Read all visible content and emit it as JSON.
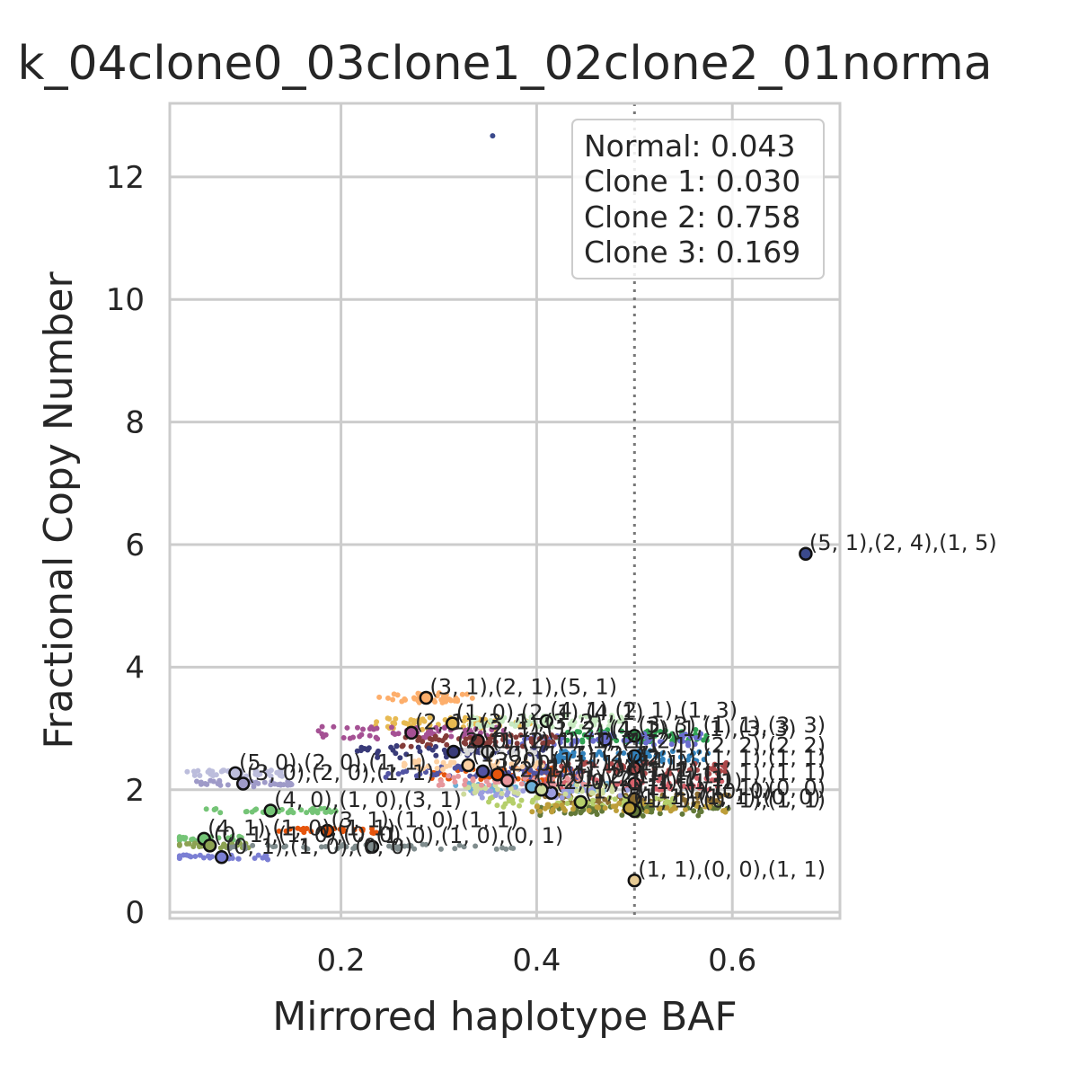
{
  "chart_data": {
    "type": "scatter",
    "title": "k_04clone0_03clone1_02clone2_01norma",
    "xlabel": "Mirrored haplotype BAF",
    "ylabel": "Fractional Copy Number",
    "xlim": [
      0.025,
      0.71
    ],
    "ylim": [
      -0.1,
      13.2
    ],
    "xticks": [
      0.2,
      0.4,
      0.6
    ],
    "xtick_labels": [
      "0.2",
      "0.4",
      "0.6"
    ],
    "yticks": [
      0,
      2,
      4,
      6,
      8,
      10,
      12
    ],
    "ytick_labels": [
      "0",
      "2",
      "4",
      "6",
      "8",
      "10",
      "12"
    ],
    "grid": true,
    "reference_line": {
      "orientation": "vertical",
      "x": 0.5,
      "style": "dotted"
    },
    "legend": {
      "placement": "top-right",
      "entries": [
        "Normal: 0.043",
        "Clone 1: 0.030",
        "Clone 2: 0.758",
        "Clone 3: 0.169"
      ]
    },
    "outliers": [
      {
        "x": 0.355,
        "y": 12.67,
        "color": "#3b4a8c"
      }
    ],
    "clusters": [
      {
        "label": "(5, 1),(2, 4),(1, 5)",
        "x": 0.675,
        "y": 5.85,
        "color": "#3b4a8c",
        "spread": [
          0.0,
          0.0,
          0
        ]
      },
      {
        "label": "(1, 1),(0, 0),(1, 1)",
        "x": 0.5,
        "y": 0.52,
        "color": "#e7cb94",
        "spread": [
          0.0,
          0.0,
          0
        ]
      },
      {
        "label": "(3, 1),(2, 1),(5, 1)",
        "x": 0.287,
        "y": 3.5,
        "color": "#fdae6b",
        "spread": [
          0.05,
          0.08,
          40
        ]
      },
      {
        "label": "(1, 0),(2, 1),(4, 1)",
        "x": 0.314,
        "y": 3.08,
        "color": "#e7ba52",
        "spread": [
          0.08,
          0.1,
          60
        ]
      },
      {
        "label": "(2, 1),(3, 1),(3, 2)",
        "x": 0.272,
        "y": 2.93,
        "color": "#a55194",
        "spread": [
          0.1,
          0.1,
          60
        ]
      },
      {
        "label": "(4, 1),(2, 1),(1, 3)",
        "x": 0.41,
        "y": 3.12,
        "color": "#c7e9c0",
        "spread": [
          0.08,
          0.1,
          60
        ]
      },
      {
        "label": "(3, 3),(1, 1),(3, 3)",
        "x": 0.5,
        "y": 2.88,
        "color": "#31a354",
        "spread": [
          0.08,
          0.1,
          60
        ]
      },
      {
        "label": "(4, 1),(1, 1),(3, 3)",
        "x": 0.47,
        "y": 2.82,
        "color": "#6b6ecf",
        "spread": [
          0.1,
          0.1,
          60
        ]
      },
      {
        "label": "(1, 1),(2, 2),(2, 2)",
        "x": 0.5,
        "y": 2.55,
        "color": "#3182bd",
        "spread": [
          0.08,
          0.1,
          60
        ]
      },
      {
        "label": "(2, 1),(1, 2),(1, 2)",
        "x": 0.34,
        "y": 2.8,
        "color": "#843c39",
        "spread": [
          0.08,
          0.1,
          60
        ]
      },
      {
        "label": "(2, 0),(2, 1),(1, 2)",
        "x": 0.315,
        "y": 2.62,
        "color": "#393b79",
        "spread": [
          0.1,
          0.1,
          60
        ]
      },
      {
        "label": "(2, 1),(1, 1),(1, 1)",
        "x": 0.5,
        "y": 2.35,
        "color": "#ad494a",
        "spread": [
          0.1,
          0.1,
          60
        ]
      },
      {
        "label": "(1, 1),(1, 1),(1, 1)",
        "x": 0.5,
        "y": 2.1,
        "color": "#d6616b",
        "spread": [
          0.1,
          0.1,
          60
        ]
      },
      {
        "label": "(2, 0),(1, 1),(1, 1)",
        "x": 0.36,
        "y": 2.25,
        "color": "#e6550d",
        "spread": [
          0.08,
          0.1,
          60
        ]
      },
      {
        "label": "(3, 0),(1, 1),(1, 1)",
        "x": 0.345,
        "y": 2.3,
        "color": "#5254a3",
        "spread": [
          0.1,
          0.1,
          60
        ]
      },
      {
        "label": "(1, 1),(1, 1),(0, 0)",
        "x": 0.5,
        "y": 1.85,
        "color": "#8c6d31",
        "spread": [
          0.1,
          0.08,
          60
        ]
      },
      {
        "label": "(1, 0),(1, 1),(0, 0)",
        "x": 0.445,
        "y": 1.8,
        "color": "#b5cf6b",
        "spread": [
          0.1,
          0.08,
          60
        ]
      },
      {
        "label": "(1, 1),(0, 1),(1, 1)",
        "x": 0.5,
        "y": 1.65,
        "color": "#637939",
        "spread": [
          0.1,
          0.08,
          60
        ]
      },
      {
        "label": "(1, 1),(1, 1),(0, 0)",
        "x": 0.495,
        "y": 1.7,
        "color": "#bd9e39",
        "spread": [
          0.1,
          0.08,
          50
        ]
      },
      {
        "label": "(1, 0),(2, 1),(1, 1)",
        "x": 0.395,
        "y": 2.05,
        "color": "#6baed6",
        "spread": [
          0.08,
          0.08,
          40
        ]
      },
      {
        "label": "(2, 0),(1, 1),(1, 1)",
        "x": 0.415,
        "y": 1.95,
        "color": "#9c9ede",
        "spread": [
          0.08,
          0.08,
          40
        ]
      },
      {
        "label": "(1, 1),(2, 1),(1, 1)",
        "x": 0.405,
        "y": 2.0,
        "color": "#cedb9c",
        "spread": [
          0.08,
          0.08,
          40
        ]
      },
      {
        "label": "(2, 1),(1, 0),(1, 1)",
        "x": 0.37,
        "y": 2.15,
        "color": "#e7969c",
        "spread": [
          0.08,
          0.08,
          40
        ]
      },
      {
        "label": "(5, 0),(2, 0),(1, 1)",
        "x": 0.092,
        "y": 2.27,
        "color": "#bcbddc",
        "spread": [
          0.05,
          0.05,
          40
        ]
      },
      {
        "label": "(3, 0),(2, 0),(1, 1)",
        "x": 0.1,
        "y": 2.1,
        "color": "#9e9ac8",
        "spread": [
          0.05,
          0.05,
          40
        ]
      },
      {
        "label": "(4, 0),(1, 0),(3, 1)",
        "x": 0.128,
        "y": 1.66,
        "color": "#74c476",
        "spread": [
          0.07,
          0.04,
          40
        ]
      },
      {
        "label": "(4, 1),(1, 0),(1, 1)",
        "x": 0.06,
        "y": 1.2,
        "color": "#74c476",
        "spread": [
          0.04,
          0.04,
          30
        ]
      },
      {
        "label": "(0, 1),(1, 0),(0, 0)",
        "x": 0.066,
        "y": 1.09,
        "color": "#8ca252",
        "spread": [
          0.04,
          0.04,
          30
        ]
      },
      {
        "label": "(0, 1),(1, 0),(0, 0)",
        "x": 0.078,
        "y": 0.9,
        "color": "#7b7fd4",
        "spread": [
          0.05,
          0.04,
          30
        ]
      },
      {
        "label": "(3, 1),(1, 0),(1, 1)",
        "x": 0.186,
        "y": 1.33,
        "color": "#e6550d",
        "spread": [
          0.05,
          0.04,
          30
        ]
      },
      {
        "label": "(1, 0),(1, 0),(0, 1)",
        "x": 0.232,
        "y": 1.07,
        "color": "#7f8c8d",
        "spread": [
          0.15,
          0.04,
          50
        ]
      },
      {
        "label": "(1, 0),(1, 1),(2, 1)",
        "x": 0.33,
        "y": 2.4,
        "color": "#fdd0a2",
        "spread": [
          0.08,
          0.08,
          40
        ]
      },
      {
        "label": "(1, 1),(1, 1),(1, 2)",
        "x": 0.35,
        "y": 2.62,
        "color": "#d9d9d9",
        "spread": [
          0.05,
          0.05,
          20
        ]
      }
    ]
  }
}
